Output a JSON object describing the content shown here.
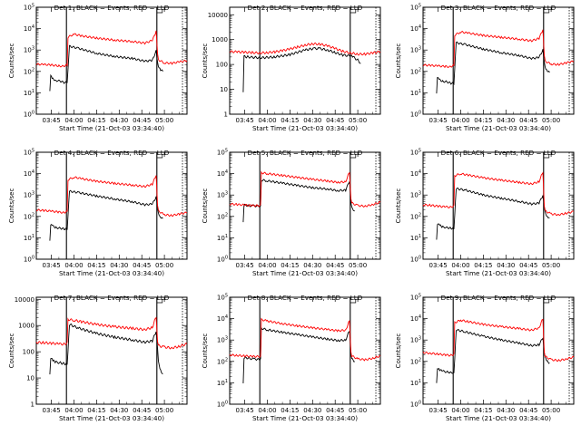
{
  "chart_data": [
    {
      "type": "line",
      "title": "Det 1: BLACK = Events, RED = LLD",
      "xlabel": "Start Time (21-Oct-03 03:34:40)",
      "ylabel": "Counts/sec",
      "x_ticks": [
        "03:45",
        "04:00",
        "04:15",
        "04:30",
        "04:45",
        "05:00"
      ],
      "y_scale": "log",
      "y_ticks": [
        "10^0",
        "10^1",
        "10^2",
        "10^3",
        "10^4",
        "10^5"
      ],
      "ylim": [
        1,
        100000
      ],
      "x_range_minutes": [
        0,
        100
      ],
      "markers_minutes": [
        20,
        80,
        97
      ],
      "series": [
        {
          "color": "#000000",
          "x": [
            9,
            9.6,
            11,
            13,
            16,
            18.5,
            20.5,
            22,
            28,
            40,
            52,
            64,
            72,
            77,
            79.5,
            80.5,
            81,
            82.5,
            84
          ],
          "values": [
            12,
            60,
            45,
            38,
            35,
            30,
            30,
            1500,
            1200,
            700,
            500,
            400,
            300,
            330,
            900,
            260,
            180,
            120,
            100
          ]
        },
        {
          "color": "#ff0000",
          "x": [
            0,
            5,
            10,
            15,
            18,
            20.5,
            21,
            25,
            30,
            40,
            52,
            64,
            72,
            77,
            79.5,
            80.5,
            81,
            85,
            90,
            95,
            100
          ],
          "values": [
            220,
            210,
            200,
            180,
            175,
            200,
            4000,
            5500,
            4600,
            3600,
            2900,
            2500,
            2100,
            2800,
            7500,
            600,
            350,
            250,
            240,
            280,
            320
          ]
        }
      ]
    },
    {
      "type": "line",
      "title": "Det 2: BLACK = Events, RED = LLD",
      "xlabel": "Start Time (21-Oct-03 03:34:40)",
      "ylabel": "Counts/sec",
      "x_ticks": [
        "03:45",
        "04:00",
        "04:15",
        "04:30",
        "04:45",
        "05:00"
      ],
      "y_scale": "log",
      "y_ticks": [
        "1",
        "10",
        "100",
        "1000",
        "10000"
      ],
      "ylim": [
        1,
        20000
      ],
      "x_range_minutes": [
        0,
        100
      ],
      "markers_minutes": [
        20,
        80,
        97
      ],
      "series": [
        {
          "color": "#000000",
          "x": [
            9,
            9.5,
            12,
            20,
            30,
            40,
            50,
            56,
            60,
            65,
            70,
            75,
            80,
            82,
            85,
            87
          ],
          "values": [
            8,
            210,
            200,
            185,
            200,
            250,
            380,
            440,
            430,
            380,
            300,
            240,
            220,
            200,
            150,
            110
          ]
        },
        {
          "color": "#ff0000",
          "x": [
            0,
            5,
            10,
            15,
            20,
            25,
            30,
            35,
            40,
            45,
            50,
            55,
            60,
            65,
            70,
            75,
            80,
            85,
            90,
            95,
            100
          ],
          "values": [
            330,
            320,
            310,
            300,
            290,
            300,
            320,
            360,
            420,
            500,
            600,
            680,
            650,
            560,
            440,
            340,
            290,
            260,
            260,
            290,
            330
          ]
        }
      ]
    },
    {
      "type": "line",
      "title": "Det 3: BLACK = Events, RED = LLD",
      "xlabel": "Start Time (21-Oct-03 03:34:40)",
      "ylabel": "Counts/sec",
      "x_ticks": [
        "03:45",
        "04:00",
        "04:15",
        "04:30",
        "04:45",
        "05:00"
      ],
      "y_scale": "log",
      "y_ticks": [
        "10^0",
        "10^1",
        "10^2",
        "10^3",
        "10^4",
        "10^5"
      ],
      "ylim": [
        1,
        100000
      ],
      "x_range_minutes": [
        0,
        100
      ],
      "markers_minutes": [
        20,
        80,
        97
      ],
      "series": [
        {
          "color": "#000000",
          "x": [
            9,
            9.5,
            11,
            13,
            16,
            18.5,
            20.5,
            22,
            28,
            40,
            52,
            64,
            72,
            77,
            79.5,
            80.5,
            81,
            82.5,
            84
          ],
          "values": [
            10,
            50,
            40,
            35,
            32,
            28,
            28,
            2200,
            1800,
            1100,
            750,
            550,
            400,
            450,
            1000,
            250,
            160,
            110,
            90
          ]
        },
        {
          "color": "#ff0000",
          "x": [
            0,
            5,
            10,
            15,
            18,
            20.5,
            21,
            25,
            30,
            40,
            52,
            64,
            72,
            77,
            79.5,
            80.5,
            81,
            85,
            90,
            95,
            100
          ],
          "values": [
            200,
            190,
            180,
            170,
            165,
            190,
            5000,
            7000,
            6200,
            4800,
            3900,
            3200,
            2700,
            3500,
            9000,
            500,
            300,
            220,
            210,
            250,
            300
          ]
        }
      ]
    },
    {
      "type": "line",
      "title": "Det 4: BLACK = Events, RED = LLD",
      "xlabel": "Start Time (21-Oct-03 03:34:40)",
      "ylabel": "Counts/sec",
      "x_ticks": [
        "03:45",
        "04:00",
        "04:15",
        "04:30",
        "04:45",
        "05:00"
      ],
      "y_scale": "log",
      "y_ticks": [
        "10^0",
        "10^1",
        "10^2",
        "10^3",
        "10^4",
        "10^5"
      ],
      "ylim": [
        1,
        100000
      ],
      "x_range_minutes": [
        0,
        100
      ],
      "markers_minutes": [
        20,
        80,
        97
      ],
      "series": [
        {
          "color": "#000000",
          "x": [
            9,
            9.6,
            11,
            13,
            16,
            18.5,
            20.5,
            22,
            28,
            40,
            52,
            64,
            72,
            77,
            79.5,
            80.5,
            81,
            82.5,
            84
          ],
          "values": [
            8,
            40,
            35,
            30,
            28,
            26,
            26,
            1500,
            1300,
            900,
            650,
            480,
            350,
            380,
            800,
            220,
            140,
            95,
            80
          ]
        },
        {
          "color": "#ff0000",
          "x": [
            0,
            5,
            10,
            15,
            18,
            20.5,
            21,
            25,
            30,
            40,
            52,
            64,
            72,
            77,
            79.5,
            80.5,
            81,
            85,
            90,
            95,
            100
          ],
          "values": [
            200,
            190,
            175,
            160,
            150,
            170,
            5200,
            6800,
            5800,
            4400,
            3500,
            2900,
            2500,
            3200,
            8500,
            300,
            180,
            120,
            110,
            130,
            150
          ]
        }
      ]
    },
    {
      "type": "line",
      "title": "Det 5: BLACK = Events, RED = LLD",
      "xlabel": "Start Time (21-Oct-03 03:34:40)",
      "ylabel": "Counts/sec",
      "x_ticks": [
        "03:45",
        "04:00",
        "04:15",
        "04:30",
        "04:45",
        "05:00"
      ],
      "y_scale": "log",
      "y_ticks": [
        "10^0",
        "10^1",
        "10^2",
        "10^3",
        "10^4",
        "10^5"
      ],
      "ylim": [
        1,
        100000
      ],
      "x_range_minutes": [
        0,
        100
      ],
      "markers_minutes": [
        20,
        80,
        97
      ],
      "series": [
        {
          "color": "#000000",
          "x": [
            9,
            9.5,
            12,
            16,
            20.5,
            21,
            25,
            35,
            45,
            55,
            65,
            72,
            77,
            79.5,
            80.5,
            81,
            83
          ],
          "values": [
            60,
            350,
            320,
            310,
            300,
            5000,
            4600,
            3600,
            2800,
            2200,
            1900,
            1600,
            1700,
            4500,
            400,
            250,
            180
          ]
        },
        {
          "color": "#ff0000",
          "x": [
            0,
            5,
            10,
            15,
            20.5,
            21,
            25,
            35,
            45,
            55,
            65,
            72,
            77,
            79.5,
            80.5,
            81,
            85,
            90,
            95,
            100
          ],
          "values": [
            380,
            360,
            340,
            320,
            320,
            11000,
            10000,
            8200,
            6600,
            5400,
            4500,
            3900,
            4200,
            12000,
            700,
            420,
            320,
            300,
            360,
            460
          ]
        }
      ]
    },
    {
      "type": "line",
      "title": "Det 6: BLACK = Events, RED = LLD",
      "xlabel": "Start Time (21-Oct-03 03:34:40)",
      "ylabel": "Counts/sec",
      "x_ticks": [
        "03:45",
        "04:00",
        "04:15",
        "04:30",
        "04:45",
        "05:00"
      ],
      "y_scale": "log",
      "y_ticks": [
        "10^0",
        "10^1",
        "10^2",
        "10^3",
        "10^4",
        "10^5"
      ],
      "ylim": [
        1,
        100000
      ],
      "x_range_minutes": [
        0,
        100
      ],
      "markers_minutes": [
        20,
        80,
        97
      ],
      "series": [
        {
          "color": "#000000",
          "x": [
            9,
            9.6,
            11,
            13,
            16,
            18.5,
            20.5,
            22,
            28,
            40,
            52,
            64,
            72,
            77,
            79.5,
            80.5,
            81,
            82.5,
            84
          ],
          "values": [
            9,
            45,
            38,
            32,
            30,
            28,
            28,
            2000,
            1700,
            1000,
            700,
            500,
            380,
            420,
            950,
            240,
            150,
            100,
            85
          ]
        },
        {
          "color": "#ff0000",
          "x": [
            0,
            5,
            10,
            15,
            18,
            20.5,
            21,
            25,
            30,
            40,
            52,
            64,
            72,
            77,
            79.5,
            80.5,
            81,
            85,
            90,
            95,
            100
          ],
          "values": [
            350,
            330,
            300,
            280,
            270,
            300,
            8000,
            10000,
            8500,
            6400,
            4900,
            3900,
            3300,
            4200,
            12000,
            300,
            180,
            130,
            120,
            140,
            170
          ]
        }
      ]
    },
    {
      "type": "line",
      "title": "Det 7: BLACK = Events, RED = LLD",
      "xlabel": "Start Time (21-Oct-03 03:34:40)",
      "ylabel": "Counts/sec",
      "x_ticks": [
        "03:45",
        "04:00",
        "04:15",
        "04:30",
        "04:45",
        "05:00"
      ],
      "y_scale": "log",
      "y_ticks": [
        "1",
        "10",
        "100",
        "1000",
        "10000"
      ],
      "ylim": [
        1,
        12000
      ],
      "x_range_minutes": [
        0,
        100
      ],
      "markers_minutes": [
        20,
        80,
        97
      ],
      "series": [
        {
          "color": "#000000",
          "x": [
            9,
            9.6,
            11,
            13,
            16,
            18.5,
            20.5,
            22,
            28,
            40,
            52,
            64,
            72,
            77,
            79.5,
            80.5,
            81,
            82.5,
            84
          ],
          "values": [
            15,
            60,
            45,
            40,
            38,
            35,
            35,
            1100,
            800,
            500,
            360,
            280,
            230,
            260,
            600,
            120,
            40,
            20,
            14
          ]
        },
        {
          "color": "#ff0000",
          "x": [
            0,
            5,
            10,
            15,
            18,
            20.5,
            21,
            25,
            30,
            40,
            52,
            64,
            72,
            77,
            79.5,
            80.5,
            81,
            85,
            90,
            95,
            100
          ],
          "values": [
            230,
            220,
            210,
            200,
            195,
            210,
            1700,
            1600,
            1400,
            1100,
            900,
            780,
            700,
            850,
            2200,
            250,
            170,
            150,
            140,
            160,
            200
          ]
        }
      ]
    },
    {
      "type": "line",
      "title": "Det 8: BLACK = Events, RED = LLD",
      "xlabel": "Start Time (21-Oct-03 03:34:40)",
      "ylabel": "Counts/sec",
      "x_ticks": [
        "03:45",
        "04:00",
        "04:15",
        "04:30",
        "04:45",
        "05:00"
      ],
      "y_scale": "log",
      "y_ticks": [
        "10^0",
        "10^1",
        "10^2",
        "10^3",
        "10^4",
        "10^5"
      ],
      "ylim": [
        1,
        100000
      ],
      "x_range_minutes": [
        0,
        100
      ],
      "markers_minutes": [
        20,
        80,
        97
      ],
      "series": [
        {
          "color": "#000000",
          "x": [
            9,
            9.5,
            12,
            16,
            20.5,
            21,
            25,
            35,
            45,
            55,
            65,
            72,
            77,
            79.5,
            80.5,
            81,
            83
          ],
          "values": [
            10,
            150,
            140,
            130,
            120,
            3500,
            3000,
            2300,
            1800,
            1400,
            1100,
            950,
            1000,
            2800,
            220,
            130,
            100
          ]
        },
        {
          "color": "#ff0000",
          "x": [
            0,
            5,
            10,
            15,
            20.5,
            21,
            25,
            35,
            45,
            55,
            65,
            72,
            77,
            79.5,
            80.5,
            81,
            85,
            90,
            95,
            100
          ],
          "values": [
            200,
            190,
            180,
            170,
            170,
            9000,
            7800,
            5800,
            4600,
            3700,
            3100,
            2700,
            2900,
            8000,
            300,
            180,
            130,
            120,
            140,
            180
          ]
        }
      ]
    },
    {
      "type": "line",
      "title": "Det 9: BLACK = Events, RED = LLD",
      "xlabel": "Start Time (21-Oct-03 03:34:40)",
      "ylabel": "Counts/sec",
      "x_ticks": [
        "03:45",
        "04:00",
        "04:15",
        "04:30",
        "04:45",
        "05:00"
      ],
      "y_scale": "log",
      "y_ticks": [
        "10^0",
        "10^1",
        "10^2",
        "10^3",
        "10^4",
        "10^5"
      ],
      "ylim": [
        1,
        100000
      ],
      "x_range_minutes": [
        0,
        100
      ],
      "markers_minutes": [
        20,
        80,
        97
      ],
      "series": [
        {
          "color": "#000000",
          "x": [
            9,
            9.6,
            11,
            13,
            16,
            18.5,
            20.5,
            22,
            28,
            40,
            52,
            64,
            72,
            77,
            79.5,
            80.5,
            81,
            82.5,
            84
          ],
          "values": [
            10,
            50,
            40,
            35,
            32,
            30,
            30,
            3000,
            2400,
            1500,
            1000,
            720,
            550,
            600,
            1300,
            250,
            150,
            100,
            85
          ]
        },
        {
          "color": "#ff0000",
          "x": [
            0,
            5,
            10,
            15,
            18,
            20.5,
            21,
            25,
            30,
            40,
            52,
            64,
            72,
            77,
            79.5,
            80.5,
            81,
            85,
            90,
            95,
            100
          ],
          "values": [
            260,
            240,
            220,
            200,
            190,
            210,
            6500,
            8500,
            7200,
            5400,
            4200,
            3400,
            2900,
            3700,
            10000,
            280,
            170,
            120,
            110,
            130,
            160
          ]
        }
      ]
    }
  ]
}
